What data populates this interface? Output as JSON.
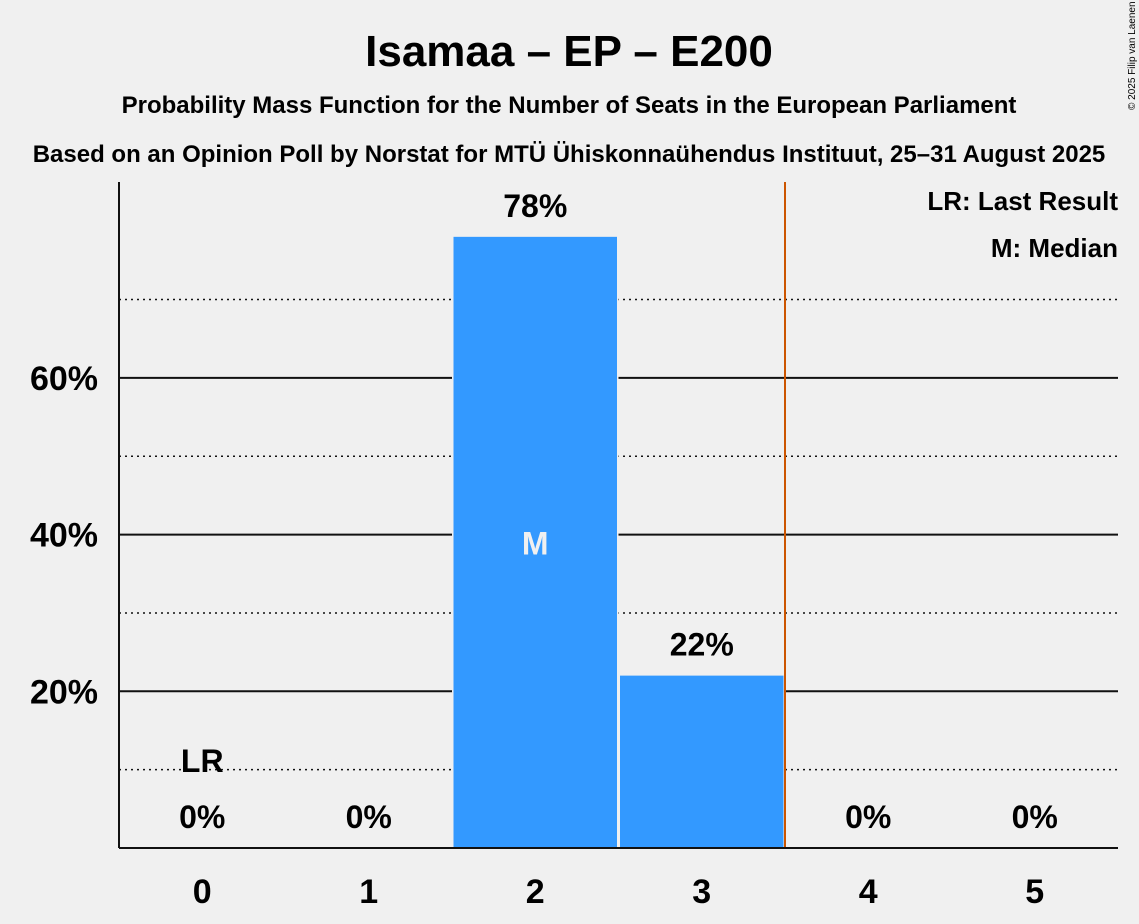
{
  "chart_data": {
    "type": "bar",
    "title": "Isamaa – EP – E200",
    "subtitle": "Probability Mass Function for the Number of Seats in the European Parliament",
    "subtitle2": "Based on an Opinion Poll by Norstat for MTÜ Ühiskonnaühendus Instituut, 25–31 August 2025",
    "categories": [
      "0",
      "1",
      "2",
      "3",
      "4",
      "5"
    ],
    "values": [
      0,
      0,
      78,
      22,
      0,
      0
    ],
    "value_labels": [
      "0%",
      "0%",
      "78%",
      "22%",
      "0%",
      "0%"
    ],
    "ylim": [
      0,
      85
    ],
    "yticks": [
      20,
      40,
      60
    ],
    "ytick_labels": [
      "20%",
      "40%",
      "60%"
    ],
    "minor_gridlines": [
      10,
      30,
      50,
      70
    ],
    "last_result_seat": 0,
    "last_result_label": "LR",
    "median_seat": 2,
    "median_label": "M",
    "majority_line_after_seat": 3,
    "legend": [
      "LR: Last Result",
      "M: Median"
    ],
    "legend_position": "top-right",
    "copyright": "© 2025 Filip van Laenen",
    "colors": {
      "bar": "#3399ff",
      "majority_line": "#cc5500",
      "text": "#111111",
      "background": "#f0f0f0",
      "median_text": "#f0f0f0"
    }
  }
}
